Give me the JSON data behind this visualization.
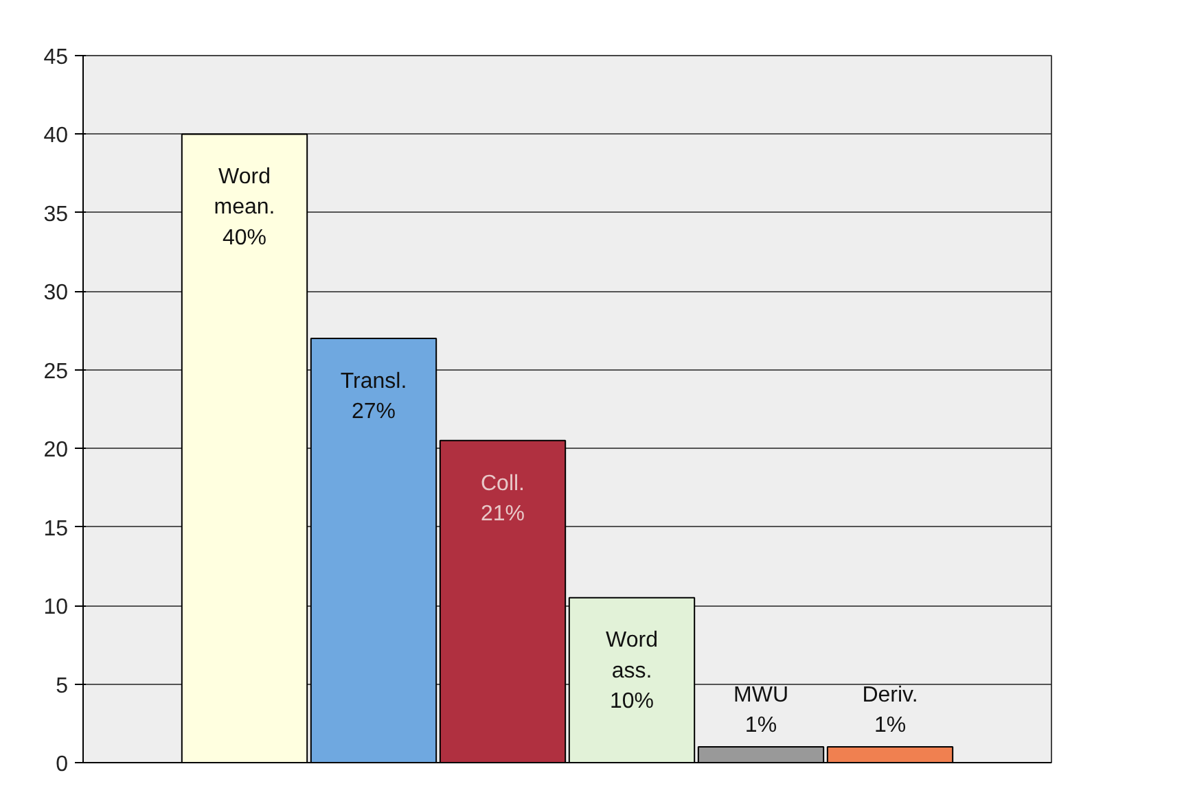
{
  "chart_data": {
    "type": "bar",
    "categories": [
      "Word mean.",
      "Transl.",
      "Coll.",
      "Word ass.",
      "MWU",
      "Deriv."
    ],
    "values": [
      40,
      27,
      20.5,
      10.5,
      1,
      1
    ],
    "value_labels": [
      "40%",
      "27%",
      "21%",
      "10%",
      "1%",
      "1%"
    ],
    "colors": [
      "#ffffe0",
      "#6fa8e0",
      "#b03040",
      "#e2f2d8",
      "#999999",
      "#f08050"
    ],
    "ylim": [
      0,
      45
    ],
    "yticks": [
      0,
      5,
      10,
      15,
      20,
      25,
      30,
      35,
      40,
      45
    ],
    "grid": "y",
    "tick_labels": "y"
  }
}
